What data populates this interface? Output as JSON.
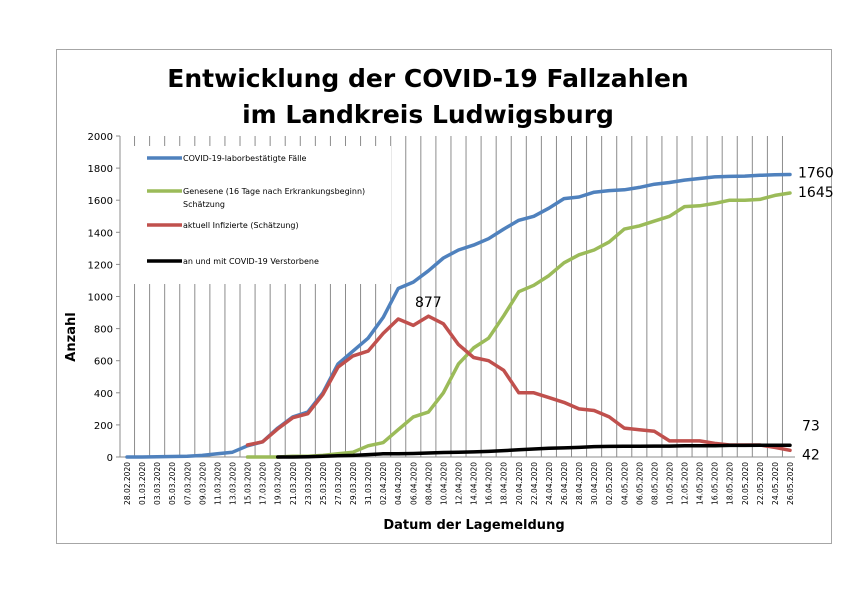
{
  "chart_data": {
    "type": "line",
    "title_line1": "Entwicklung der COVID-19 Fallzahlen",
    "title_line2": "im Landkreis Ludwigsburg",
    "xlabel": "Datum der Lagemeldung",
    "ylabel": "Anzahl",
    "ylim": [
      0,
      2000
    ],
    "yticks": [
      0,
      200,
      400,
      600,
      800,
      1000,
      1200,
      1400,
      1600,
      1800,
      2000
    ],
    "grid": "vertical",
    "legend_position": "top-left",
    "x": [
      "28.02.2020",
      "01.03.2020",
      "03.03.2020",
      "05.03.2020",
      "07.03.2020",
      "09.03.2020",
      "11.03.2020",
      "13.03.2020",
      "15.03.2020",
      "17.03.2020",
      "19.03.2020",
      "21.03.2020",
      "23.03.2020",
      "25.03.2020",
      "27.03.2020",
      "29.03.2020",
      "31.03.2020",
      "02.04.2020",
      "04.04.2020",
      "06.04.2020",
      "08.04.2020",
      "10.04.2020",
      "12.04.2020",
      "14.04.2020",
      "16.04.2020",
      "18.04.2020",
      "20.04.2020",
      "22.04.2020",
      "24.04.2020",
      "26.04.2020",
      "28.04.2020",
      "30.04.2020",
      "02.05.2020",
      "04.05.2020",
      "06.05.2020",
      "08.05.2020",
      "10.05.2020",
      "12.05.2020",
      "14.05.2020",
      "16.05.2020",
      "18.05.2020",
      "20.05.2020",
      "22.05.2020",
      "24.05.2020",
      "26.05.2020"
    ],
    "series": [
      {
        "name": "COVID-19-laborbestätigte Fälle",
        "color": "#4f81bd",
        "values": [
          0,
          0,
          2,
          3,
          5,
          10,
          20,
          30,
          70,
          95,
          180,
          250,
          280,
          400,
          580,
          660,
          740,
          870,
          1050,
          1090,
          1160,
          1240,
          1290,
          1320,
          1360,
          1420,
          1475,
          1500,
          1550,
          1610,
          1620,
          1650,
          1660,
          1665,
          1680,
          1700,
          1710,
          1725,
          1735,
          1745,
          1748,
          1750,
          1755,
          1758,
          1760
        ]
      },
      {
        "name": "Genesene (16 Tage nach Erkrankungsbeginn) Schätzung",
        "color": "#9bbb59",
        "values": [
          null,
          null,
          null,
          null,
          null,
          null,
          null,
          null,
          0,
          0,
          0,
          5,
          5,
          10,
          20,
          30,
          70,
          90,
          170,
          250,
          280,
          400,
          580,
          680,
          740,
          880,
          1030,
          1070,
          1130,
          1210,
          1260,
          1290,
          1340,
          1420,
          1440,
          1470,
          1500,
          1560,
          1565,
          1580,
          1600,
          1600,
          1605,
          1630,
          1645
        ]
      },
      {
        "name": "aktuell Infizierte (Schätzung)",
        "color": "#c0504d",
        "values": [
          null,
          null,
          null,
          null,
          null,
          null,
          null,
          null,
          75,
          95,
          175,
          245,
          270,
          390,
          560,
          630,
          660,
          770,
          860,
          820,
          877,
          830,
          700,
          620,
          600,
          540,
          400,
          400,
          370,
          340,
          300,
          290,
          250,
          180,
          170,
          160,
          100,
          100,
          100,
          85,
          75,
          75,
          75,
          60,
          42
        ]
      },
      {
        "name": "an und mit COVID-19 Verstorbene",
        "color": "#000000",
        "values": [
          null,
          null,
          null,
          null,
          null,
          null,
          null,
          null,
          null,
          null,
          0,
          0,
          2,
          5,
          8,
          10,
          15,
          20,
          20,
          22,
          25,
          28,
          30,
          32,
          35,
          40,
          45,
          50,
          55,
          57,
          60,
          65,
          66,
          67,
          67,
          68,
          68,
          70,
          70,
          70,
          72,
          72,
          73,
          73,
          73
        ]
      }
    ],
    "annotations": [
      {
        "text": "877",
        "series": 2,
        "index": 20
      },
      {
        "text": "1760",
        "series": 0,
        "index": 44
      },
      {
        "text": "1645",
        "series": 1,
        "index": 44
      },
      {
        "text": "73",
        "series": 3,
        "index": 44
      },
      {
        "text": "42",
        "series": 2,
        "index": 44
      }
    ]
  }
}
